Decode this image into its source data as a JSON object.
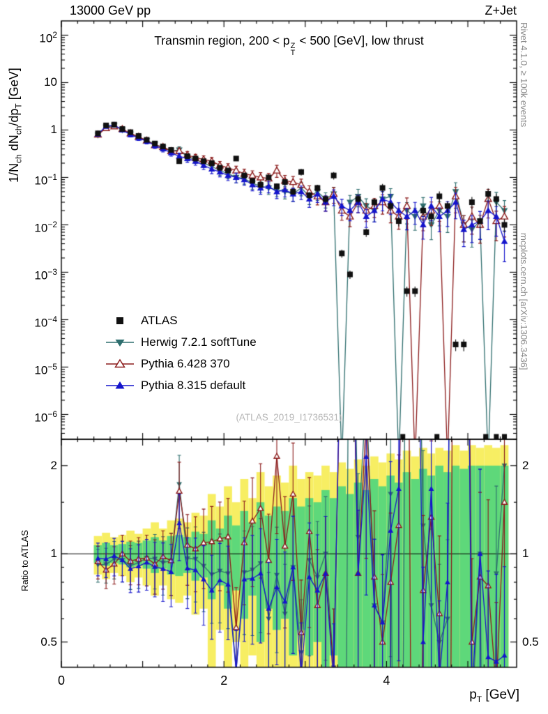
{
  "header": {
    "left": "13000 GeV pp",
    "right": "Z+Jet"
  },
  "panel_title": {
    "prefix": "Transmin region, 200 < ",
    "sym": "p",
    "sup": "Z",
    "sub": "T",
    "suffix": " < 500 [GeV], low thrust"
  },
  "watermark": "(ATLAS_2019_I1736531)",
  "side_notes": {
    "top_right": "Rivet 4.1.0, ≥ 100k events",
    "bottom_right": "mcplots.cern.ch [arXiv:1306.3436]"
  },
  "legend": [
    {
      "label": "ATLAS",
      "marker": "square",
      "color_key": "atlas"
    },
    {
      "label": "Herwig 7.2.1 softTune",
      "marker": "triangle-down",
      "color_key": "herwig"
    },
    {
      "label": "Pythia 6.428 370",
      "marker": "triangle-open-up",
      "color_key": "pythia6"
    },
    {
      "label": "Pythia 8.315 default",
      "marker": "triangle-up",
      "color_key": "pythia8"
    }
  ],
  "colors": {
    "atlas": "#101010",
    "herwig": "#2E6E6E",
    "pythia6": "#8B1A1A",
    "pythia8": "#1414CC",
    "band_yellow": "#F7EE63",
    "band_green": "#5ED87A",
    "frame": "#000000",
    "unity_line": "#000000",
    "watermark": "#b5b5b5",
    "side_note": "#8c8c8c"
  },
  "axes": {
    "x": {
      "major_labeled": [
        0,
        2,
        4
      ],
      "label_parts": {
        "base": "p",
        "sub": "T",
        "suffix": " [GeV]"
      }
    },
    "y_top": {
      "scale": "log",
      "tick_exps": [
        2,
        1,
        0,
        -1,
        -2,
        -3,
        -4,
        -5,
        -6
      ],
      "label_parts": {
        "p1": "1/N",
        "s1": "ch",
        "p2": " dN",
        "s2": "ch",
        "p3": "/dp",
        "s3": "T",
        "p4": " [GeV]"
      }
    },
    "y_ratio": {
      "scale": "log",
      "ticks": [
        2,
        1,
        0.5
      ],
      "minor_ticks": [
        0.6,
        0.7,
        0.8,
        0.9,
        1.5
      ],
      "label": "Ratio to ATLAS"
    }
  },
  "chart_data": {
    "type": "line",
    "title": "Transmin region, 200 < pT(Z) < 500 [GeV], low thrust",
    "xlabel": "pT [GeV]",
    "ylabel": "1/Nch dNch/dpT [GeV]",
    "ratio_label": "Ratio to ATLAS",
    "xlim": [
      0,
      5.6
    ],
    "ylim_top": [
      3e-07,
      200
    ],
    "ylim_ratio": [
      0.41,
      2.46
    ],
    "x": [
      0.45,
      0.55,
      0.65,
      0.75,
      0.85,
      0.95,
      1.05,
      1.15,
      1.25,
      1.35,
      1.45,
      1.55,
      1.65,
      1.75,
      1.85,
      1.95,
      2.05,
      2.15,
      2.25,
      2.35,
      2.45,
      2.55,
      2.65,
      2.75,
      2.85,
      2.95,
      3.05,
      3.15,
      3.25,
      3.35,
      3.45,
      3.55,
      3.65,
      3.75,
      3.85,
      3.95,
      4.05,
      4.15,
      4.25,
      4.35,
      4.45,
      4.55,
      4.65,
      4.75,
      4.85,
      4.95,
      5.05,
      5.15,
      5.25,
      5.35,
      5.45
    ],
    "series": [
      {
        "name": "ATLAS",
        "marker": "square",
        "color_key": "atlas",
        "draw_line": false,
        "values": [
          0.85,
          1.25,
          1.3,
          1.05,
          0.9,
          0.75,
          0.62,
          0.52,
          0.45,
          0.38,
          0.22,
          0.28,
          0.25,
          0.22,
          0.2,
          0.16,
          0.14,
          0.25,
          0.11,
          0.085,
          0.07,
          0.1,
          0.065,
          0.08,
          0.05,
          0.13,
          0.042,
          0.06,
          0.035,
          0.11,
          0.0025,
          0.0009,
          0.035,
          0.007,
          0.03,
          0.06,
          0.025,
          0.012,
          0.0004,
          0.0004,
          0.02,
          0.015,
          0.04,
          0.025,
          3e-05,
          3e-05,
          0.03,
          0.012,
          0.045,
          0.035,
          0.01
        ]
      },
      {
        "name": "Herwig 7.2.1 softTune",
        "marker": "triangle-down",
        "color_key": "herwig",
        "draw_line": true,
        "values": [
          0.78,
          1.15,
          1.25,
          1.0,
          0.82,
          0.7,
          0.6,
          0.5,
          0.42,
          0.36,
          0.38,
          0.27,
          0.24,
          0.2,
          0.17,
          0.14,
          0.12,
          0.1,
          0.095,
          0.075,
          0.065,
          0.06,
          0.055,
          0.05,
          0.045,
          0.06,
          0.04,
          0.05,
          0.035,
          0.045,
          1e-07,
          0.03,
          0.04,
          0.025,
          0.02,
          0.035,
          0.04,
          1e-07,
          0.02,
          0.015,
          0.025,
          0.01,
          0.02,
          0.015,
          0.05,
          0.01,
          0.008,
          0.012,
          1e-07,
          0.03,
          0.02
        ]
      },
      {
        "name": "Pythia 6.428 370",
        "marker": "triangle-open-up",
        "color_key": "pythia6",
        "draw_line": true,
        "values": [
          0.8,
          1.1,
          1.2,
          1.05,
          0.85,
          0.72,
          0.6,
          0.48,
          0.44,
          0.36,
          0.36,
          0.3,
          0.26,
          0.24,
          0.22,
          0.18,
          0.16,
          0.14,
          0.12,
          0.11,
          0.1,
          0.095,
          0.14,
          0.085,
          0.08,
          0.07,
          0.05,
          0.04,
          0.03,
          0.045,
          0.02,
          0.015,
          0.03,
          0.02,
          0.025,
          0.03,
          0.02,
          0.015,
          0.025,
          1e-07,
          0.015,
          0.02,
          0.025,
          1e-07,
          0.04,
          0.01,
          0.015,
          0.01,
          0.035,
          0.012,
          0.015
        ]
      },
      {
        "name": "Pythia 8.315 default",
        "marker": "triangle-up",
        "color_key": "pythia8",
        "draw_line": true,
        "values": [
          0.82,
          1.2,
          1.28,
          1.0,
          0.8,
          0.68,
          0.58,
          0.47,
          0.4,
          0.33,
          0.28,
          0.25,
          0.22,
          0.18,
          0.15,
          0.13,
          0.11,
          0.1,
          0.09,
          0.07,
          0.06,
          0.065,
          0.05,
          0.055,
          0.045,
          0.05,
          0.035,
          0.045,
          0.03,
          0.04,
          0.025,
          0.02,
          0.03,
          0.015,
          0.02,
          0.035,
          0.03,
          0.02,
          0.015,
          0.02,
          0.01,
          0.025,
          0.015,
          0.02,
          0.03,
          0.008,
          0.01,
          0.012,
          0.02,
          0.015,
          0.0045
        ]
      }
    ],
    "atlas_zero_x": [
      4.2,
      4.62,
      5.22,
      5.35,
      5.45
    ],
    "error_model": {
      "base": 0.08,
      "growth": 0.55,
      "power": 1.2,
      "atlas_scale": 0.5,
      "ratio_scale": 1.6
    },
    "bands": {
      "yellow": [
        0.15,
        0.18,
        0.14,
        0.16,
        0.2,
        0.17,
        0.22,
        0.28,
        0.22,
        0.3,
        0.32,
        0.28,
        0.38,
        0.35,
        0.6,
        0.45,
        0.7,
        0.5,
        0.8,
        0.55,
        0.9,
        0.7,
        0.85,
        0.75,
        1.0,
        0.8,
        0.9,
        0.85,
        1.0,
        0.9,
        1.05,
        0.95,
        1.1,
        1.0,
        1.15,
        1.05,
        1.2,
        1.1,
        1.25,
        1.15,
        1.3,
        1.2,
        1.3,
        1.25,
        1.35,
        1.25,
        1.35,
        1.3,
        1.35,
        1.3,
        1.35
      ],
      "green": [
        0.07,
        0.09,
        0.07,
        0.08,
        0.1,
        0.09,
        0.11,
        0.14,
        0.11,
        0.15,
        0.16,
        0.14,
        0.19,
        0.17,
        0.3,
        0.22,
        0.35,
        0.25,
        0.4,
        0.28,
        0.5,
        0.35,
        0.45,
        0.4,
        0.55,
        0.45,
        0.55,
        0.5,
        0.65,
        0.55,
        0.7,
        0.6,
        0.75,
        0.65,
        0.8,
        0.7,
        0.85,
        0.75,
        0.9,
        0.8,
        0.95,
        0.85,
        1.0,
        0.9,
        1.0,
        0.95,
        1.0,
        1.0,
        1.0,
        1.0,
        1.0
      ]
    }
  }
}
